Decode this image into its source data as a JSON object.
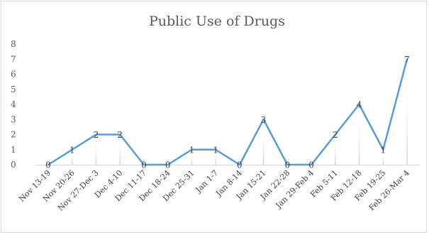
{
  "chart_data": {
    "type": "line",
    "title": "Public Use of Drugs",
    "categories": [
      "Nov 13-19",
      "Nov 20-26",
      "Nov 27-Dec 3",
      "Dec 4-10",
      "Dec 11-17",
      "Dec 18-24",
      "Dec 25-31",
      "Jan 1-7",
      "Jan 8-14",
      "Jan 15-21",
      "Jan 22-28",
      "Jan 29-Feb 4",
      "Feb 5-11",
      "Feb 12-18",
      "Feb 19-25",
      "Feb 26-Mar 4"
    ],
    "series": [
      {
        "values": [
          0,
          1,
          2,
          2,
          0,
          0,
          1,
          1,
          0,
          3,
          0,
          0,
          2,
          4,
          1,
          7
        ]
      }
    ],
    "ylim": [
      0,
      8
    ],
    "yticks": [
      0,
      1,
      2,
      3,
      4,
      5,
      6,
      7,
      8
    ],
    "xlabel": "",
    "ylabel": "",
    "grid": "vertical-drop-lines",
    "legend": "none",
    "data_labels": true,
    "colors": {
      "line": "#5b9bd5",
      "droplines": "#e3e3e3",
      "axis": "#d9d9d9",
      "text": "#595959"
    }
  }
}
